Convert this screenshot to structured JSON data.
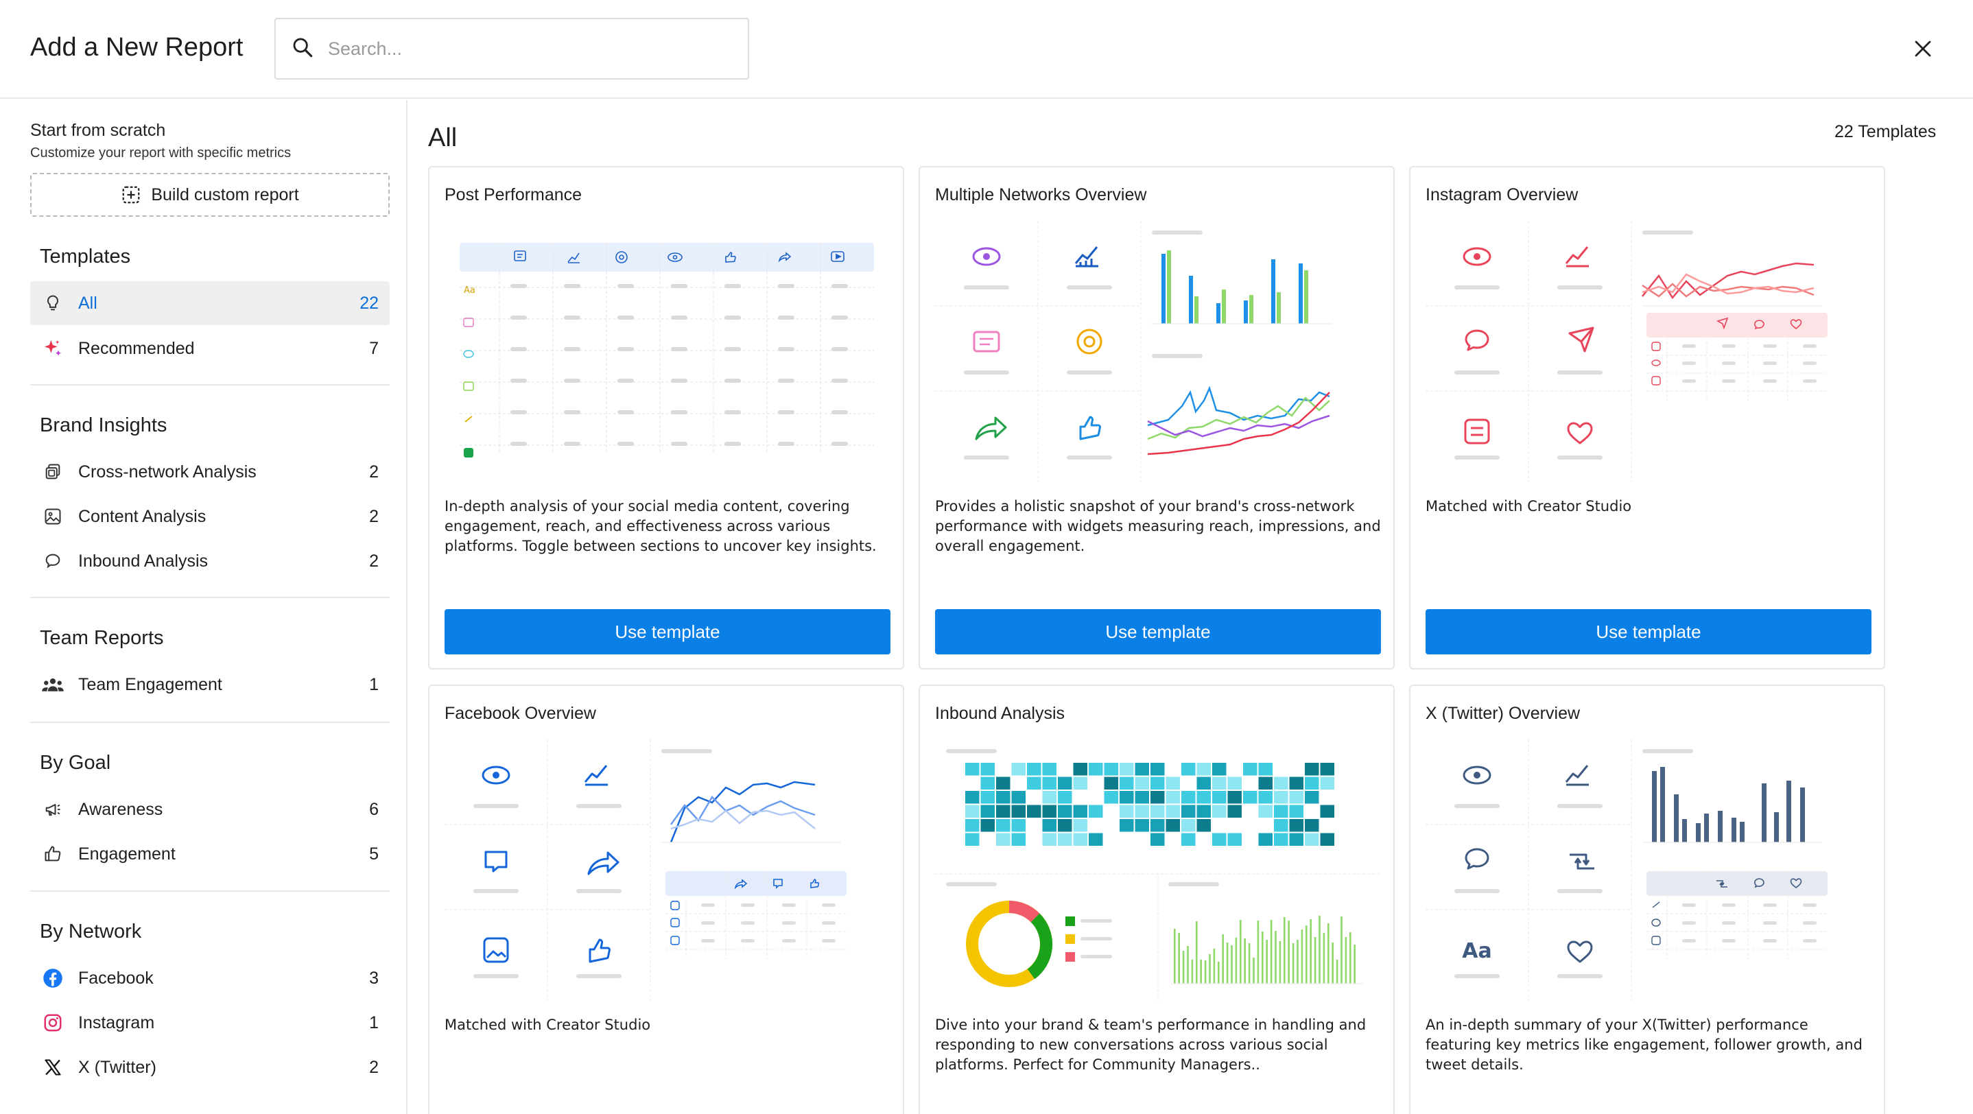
{
  "header": {
    "title": "Add a New Report",
    "search_placeholder": "Search..."
  },
  "sidebar": {
    "scratch_title": "Start from scratch",
    "scratch_sub": "Customize your report with specific metrics",
    "custom_btn": "Build custom report",
    "sections": {
      "templates": "Templates",
      "brand": "Brand Insights",
      "team": "Team Reports",
      "goal": "By Goal",
      "network": "By Network"
    },
    "items": {
      "all": {
        "label": "All",
        "count": "22"
      },
      "recommended": {
        "label": "Recommended",
        "count": "7"
      },
      "cross": {
        "label": "Cross-network Analysis",
        "count": "2"
      },
      "content": {
        "label": "Content Analysis",
        "count": "2"
      },
      "inbound": {
        "label": "Inbound Analysis",
        "count": "2"
      },
      "team_eng": {
        "label": "Team Engagement",
        "count": "1"
      },
      "awareness": {
        "label": "Awareness",
        "count": "6"
      },
      "engagement": {
        "label": "Engagement",
        "count": "5"
      },
      "facebook": {
        "label": "Facebook",
        "count": "3"
      },
      "instagram": {
        "label": "Instagram",
        "count": "1"
      },
      "twitter": {
        "label": "X (Twitter)",
        "count": "2"
      }
    }
  },
  "main": {
    "title": "All",
    "count": "22 Templates",
    "button_label": "Use template",
    "cards": [
      {
        "title": "Post Performance",
        "desc": "In-depth analysis of your social media content, covering engagement, reach, and effectiveness across various platforms. Toggle between sections to uncover key insights."
      },
      {
        "title": "Multiple Networks Overview",
        "desc": "Provides a holistic snapshot of your brand's cross-network performance with widgets measuring reach, impressions, and overall engagement."
      },
      {
        "title": "Instagram Overview",
        "desc": "Matched with Creator Studio"
      },
      {
        "title": "Facebook Overview",
        "desc": "Matched with Creator Studio"
      },
      {
        "title": "Inbound Analysis",
        "desc": "Dive into your brand & team's performance in handling and responding to new conversations across various social platforms. Perfect for Community Managers.."
      },
      {
        "title": "X (Twitter) Overview",
        "desc": "An in-depth summary of your X(Twitter) performance featuring key metrics like engagement, follower growth, and tweet details."
      }
    ],
    "twitter_aa": "Aa",
    "post_aa": "Aa"
  },
  "colors": {
    "accent": "#0a7fe6",
    "active_text": "#0c6fd8",
    "instagram": "#e8445a",
    "facebook": "#1465d9",
    "twitter": "#3f5a80",
    "multi_blue": "#1e90e8",
    "multi_green": "#8fd86a"
  }
}
